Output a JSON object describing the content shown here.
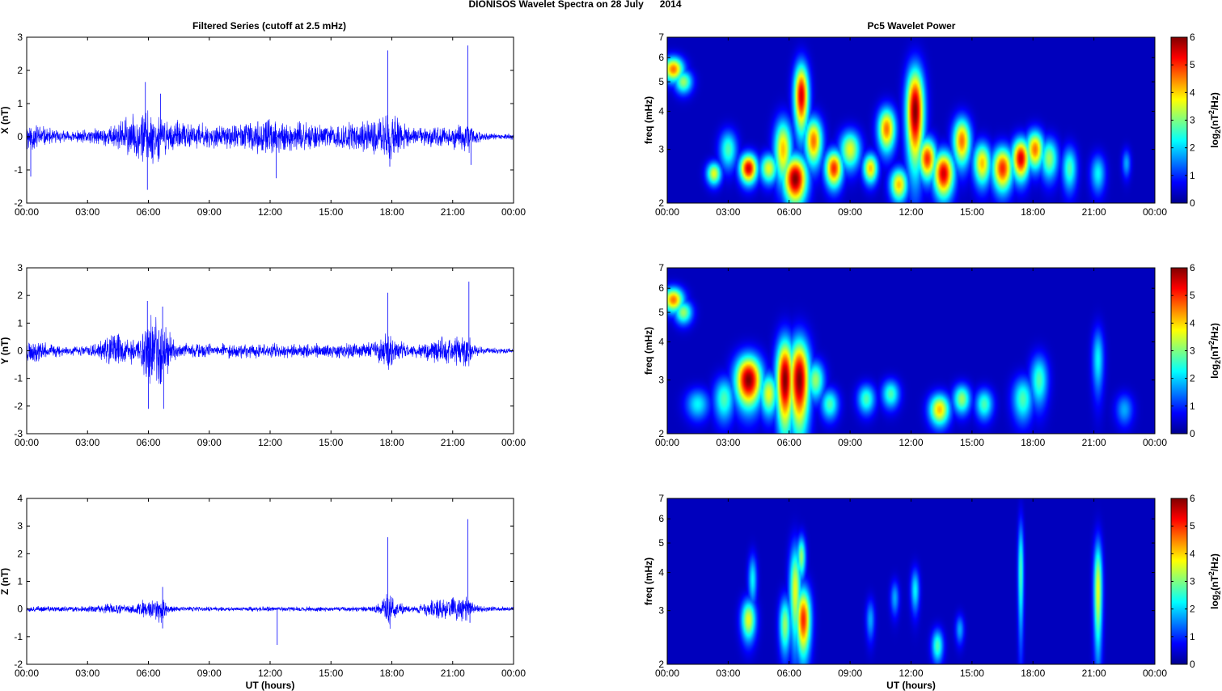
{
  "figure_title": "DIONISOS Wavelet Spectra on 28 July      2014",
  "left_title": "Filtered Series (cutoff at 2.5 mHz)",
  "right_title": "Pc5 Wavelet Power",
  "colors": {
    "trace": "#0000ff",
    "axes": "#000000",
    "background": "#ffffff",
    "grid": "none"
  },
  "chart_data": [
    {
      "type": "line",
      "id": "x",
      "title": "Filtered Series (cutoff at 2.5 mHz)",
      "xlabel": "",
      "ylabel": "X (nT)",
      "x_ticks": [
        "00:00",
        "03:00",
        "06:00",
        "09:00",
        "12:00",
        "15:00",
        "18:00",
        "21:00",
        "00:00"
      ],
      "xlim_hours": [
        0,
        24
      ],
      "y_ticks": [
        -2,
        -1,
        0,
        1,
        2,
        3
      ],
      "ylim": [
        -2,
        3
      ],
      "grid": false,
      "envelope": {
        "x_hours": [
          0,
          0.5,
          1,
          1.5,
          2,
          2.5,
          3,
          3.5,
          4,
          4.5,
          5,
          5.5,
          5.8,
          6,
          6.3,
          6.7,
          7,
          7.5,
          8,
          8.5,
          9,
          9.5,
          10,
          10.5,
          11,
          11.5,
          12,
          12.5,
          13,
          13.5,
          14,
          14.5,
          15,
          15.5,
          16,
          16.5,
          17,
          17.5,
          17.8,
          18,
          18.3,
          18.7,
          19,
          19.5,
          20,
          20.5,
          21,
          21.5,
          21.8,
          22,
          22.5,
          23,
          23.5,
          24
        ],
        "amplitude_nT": [
          0.55,
          0.5,
          0.3,
          0.25,
          0.2,
          0.2,
          0.25,
          0.3,
          0.35,
          0.5,
          0.7,
          0.8,
          1.0,
          0.9,
          0.85,
          0.7,
          0.6,
          0.5,
          0.45,
          0.5,
          0.4,
          0.4,
          0.4,
          0.5,
          0.5,
          0.55,
          0.6,
          0.55,
          0.5,
          0.5,
          0.45,
          0.45,
          0.4,
          0.45,
          0.5,
          0.55,
          0.55,
          0.7,
          0.95,
          0.8,
          0.6,
          0.5,
          0.3,
          0.3,
          0.35,
          0.35,
          0.4,
          0.5,
          0.55,
          0.3,
          0.15,
          0.12,
          0.1,
          0.1
        ]
      },
      "spikes": [
        {
          "x_hours": 0.2,
          "y": -1.2
        },
        {
          "x_hours": 5.85,
          "y": 1.65
        },
        {
          "x_hours": 5.95,
          "y": -1.6
        },
        {
          "x_hours": 6.6,
          "y": 1.3
        },
        {
          "x_hours": 12.3,
          "y": -1.25
        },
        {
          "x_hours": 17.8,
          "y": 2.6
        },
        {
          "x_hours": 17.9,
          "y": -0.9
        },
        {
          "x_hours": 21.75,
          "y": 2.75
        },
        {
          "x_hours": 21.9,
          "y": -0.85
        }
      ]
    },
    {
      "type": "line",
      "id": "y",
      "ylabel": "Y (nT)",
      "x_ticks": [
        "00:00",
        "03:00",
        "06:00",
        "09:00",
        "12:00",
        "15:00",
        "18:00",
        "21:00",
        "00:00"
      ],
      "xlim_hours": [
        0,
        24
      ],
      "y_ticks": [
        -3,
        -2,
        -1,
        0,
        1,
        2,
        3
      ],
      "ylim": [
        -3,
        3
      ],
      "grid": false,
      "envelope": {
        "x_hours": [
          0,
          0.5,
          1,
          1.5,
          2,
          2.5,
          3,
          3.5,
          4,
          4.5,
          5,
          5.5,
          5.8,
          6,
          6.3,
          6.6,
          6.9,
          7.2,
          7.5,
          8,
          9,
          10,
          11,
          11.5,
          12,
          12.5,
          13,
          14,
          15,
          16,
          17,
          17.5,
          17.8,
          18,
          18.3,
          18.7,
          19,
          19.5,
          20,
          20.5,
          21,
          21.5,
          21.8,
          22,
          22.5,
          23,
          23.5,
          24
        ],
        "amplitude_nT": [
          0.5,
          0.45,
          0.3,
          0.25,
          0.2,
          0.2,
          0.25,
          0.3,
          0.6,
          0.75,
          0.5,
          0.7,
          1.3,
          1.6,
          1.3,
          1.5,
          1.1,
          0.5,
          0.35,
          0.3,
          0.3,
          0.3,
          0.3,
          0.3,
          0.35,
          0.3,
          0.3,
          0.3,
          0.3,
          0.3,
          0.35,
          0.5,
          0.9,
          0.7,
          0.45,
          0.35,
          0.3,
          0.35,
          0.55,
          0.55,
          0.6,
          0.65,
          0.7,
          0.25,
          0.15,
          0.12,
          0.12,
          0.12
        ]
      },
      "spikes": [
        {
          "x_hours": 5.95,
          "y": 1.8
        },
        {
          "x_hours": 6.0,
          "y": -2.1
        },
        {
          "x_hours": 6.7,
          "y": 1.6
        },
        {
          "x_hours": 6.75,
          "y": -2.1
        },
        {
          "x_hours": 17.8,
          "y": 2.1
        },
        {
          "x_hours": 21.8,
          "y": 2.5
        }
      ]
    },
    {
      "type": "line",
      "id": "z",
      "xlabel": "UT (hours)",
      "ylabel": "Z (nT)",
      "x_ticks": [
        "00:00",
        "03:00",
        "06:00",
        "09:00",
        "12:00",
        "15:00",
        "18:00",
        "21:00",
        "00:00"
      ],
      "xlim_hours": [
        0,
        24
      ],
      "y_ticks": [
        -2,
        -1,
        0,
        1,
        2,
        3,
        4
      ],
      "ylim": [
        -2,
        4
      ],
      "grid": false,
      "envelope": {
        "x_hours": [
          0,
          1,
          2,
          3,
          3.5,
          4,
          4.5,
          5,
          5.5,
          5.8,
          6,
          6.3,
          6.6,
          6.9,
          7.2,
          7.5,
          8,
          9,
          10,
          11,
          12,
          13,
          14,
          15,
          16,
          17,
          17.5,
          17.8,
          18,
          18.3,
          18.7,
          19,
          19.5,
          20,
          20.5,
          21,
          21.5,
          21.8,
          22,
          22.5,
          23,
          24
        ],
        "amplitude_nT": [
          0.12,
          0.12,
          0.12,
          0.12,
          0.15,
          0.25,
          0.2,
          0.15,
          0.3,
          0.45,
          0.35,
          0.5,
          0.6,
          0.3,
          0.15,
          0.12,
          0.1,
          0.1,
          0.1,
          0.1,
          0.1,
          0.1,
          0.1,
          0.1,
          0.1,
          0.12,
          0.25,
          0.9,
          0.6,
          0.3,
          0.15,
          0.12,
          0.2,
          0.45,
          0.5,
          0.5,
          0.55,
          0.7,
          0.2,
          0.12,
          0.1,
          0.1
        ]
      },
      "spikes": [
        {
          "x_hours": 6.7,
          "y": 0.8
        },
        {
          "x_hours": 6.7,
          "y": -0.7
        },
        {
          "x_hours": 12.35,
          "y": -1.3
        },
        {
          "x_hours": 17.8,
          "y": 2.6
        },
        {
          "x_hours": 17.9,
          "y": -0.55
        },
        {
          "x_hours": 21.75,
          "y": 3.25
        },
        {
          "x_hours": 21.85,
          "y": -0.5
        }
      ]
    },
    {
      "type": "heatmap",
      "id": "wx",
      "title": "Pc5 Wavelet Power",
      "xlabel": "",
      "ylabel": "freq (mHz)",
      "x_ticks": [
        "00:00",
        "03:00",
        "06:00",
        "09:00",
        "12:00",
        "15:00",
        "18:00",
        "21:00",
        "00:00"
      ],
      "xlim_hours": [
        0,
        24
      ],
      "y_scale": "log",
      "y_ticks": [
        2,
        3,
        4,
        5,
        6,
        7
      ],
      "ylim_mHz": [
        2,
        7
      ],
      "colorbar": {
        "label": "log2(nT^2/Hz)",
        "ticks": [
          0,
          1,
          2,
          3,
          4,
          5,
          6
        ],
        "range": [
          0,
          6
        ],
        "colormap": "jet"
      },
      "blobs": [
        {
          "t": 0.3,
          "f": 5.5,
          "sf": 0.35,
          "w": 0.35,
          "p": 4.5
        },
        {
          "t": 0.8,
          "f": 5.0,
          "sf": 0.3,
          "w": 0.3,
          "p": 3.0
        },
        {
          "t": 2.3,
          "f": 2.5,
          "sf": 0.15,
          "w": 0.25,
          "p": 3.5
        },
        {
          "t": 3.0,
          "f": 3.0,
          "sf": 0.3,
          "w": 0.3,
          "p": 2.5
        },
        {
          "t": 4.0,
          "f": 2.6,
          "sf": 0.2,
          "w": 0.3,
          "p": 5.5
        },
        {
          "t": 5.0,
          "f": 2.6,
          "sf": 0.2,
          "w": 0.3,
          "p": 3.5
        },
        {
          "t": 5.7,
          "f": 3.0,
          "sf": 0.5,
          "w": 0.3,
          "p": 4.0
        },
        {
          "t": 6.3,
          "f": 2.4,
          "sf": 0.3,
          "w": 0.4,
          "p": 6.0
        },
        {
          "t": 6.6,
          "f": 4.5,
          "sf": 0.8,
          "w": 0.25,
          "p": 5.5
        },
        {
          "t": 7.2,
          "f": 3.2,
          "sf": 0.4,
          "w": 0.3,
          "p": 4.5
        },
        {
          "t": 8.2,
          "f": 2.6,
          "sf": 0.25,
          "w": 0.3,
          "p": 5.0
        },
        {
          "t": 9.0,
          "f": 3.0,
          "sf": 0.3,
          "w": 0.35,
          "p": 3.5
        },
        {
          "t": 10.0,
          "f": 2.6,
          "sf": 0.2,
          "w": 0.25,
          "p": 4.0
        },
        {
          "t": 10.8,
          "f": 3.5,
          "sf": 0.4,
          "w": 0.3,
          "p": 4.5
        },
        {
          "t": 11.4,
          "f": 2.3,
          "sf": 0.2,
          "w": 0.3,
          "p": 4.0
        },
        {
          "t": 12.2,
          "f": 4.0,
          "sf": 1.0,
          "w": 0.3,
          "p": 6.0
        },
        {
          "t": 12.8,
          "f": 2.8,
          "sf": 0.3,
          "w": 0.3,
          "p": 5.0
        },
        {
          "t": 13.6,
          "f": 2.5,
          "sf": 0.3,
          "w": 0.35,
          "p": 5.5
        },
        {
          "t": 14.5,
          "f": 3.2,
          "sf": 0.4,
          "w": 0.3,
          "p": 4.5
        },
        {
          "t": 15.5,
          "f": 2.7,
          "sf": 0.3,
          "w": 0.3,
          "p": 4.0
        },
        {
          "t": 16.5,
          "f": 2.6,
          "sf": 0.3,
          "w": 0.35,
          "p": 5.0
        },
        {
          "t": 17.4,
          "f": 2.8,
          "sf": 0.3,
          "w": 0.3,
          "p": 5.5
        },
        {
          "t": 18.1,
          "f": 3.0,
          "sf": 0.3,
          "w": 0.3,
          "p": 4.5
        },
        {
          "t": 18.8,
          "f": 2.8,
          "sf": 0.3,
          "w": 0.3,
          "p": 3.0
        },
        {
          "t": 19.8,
          "f": 2.6,
          "sf": 0.3,
          "w": 0.25,
          "p": 2.5
        },
        {
          "t": 21.2,
          "f": 2.5,
          "sf": 0.25,
          "w": 0.25,
          "p": 2.0
        },
        {
          "t": 22.6,
          "f": 2.7,
          "sf": 0.2,
          "w": 0.15,
          "p": 1.5
        }
      ]
    },
    {
      "type": "heatmap",
      "id": "wy",
      "ylabel": "freq (mHz)",
      "x_ticks": [
        "00:00",
        "03:00",
        "06:00",
        "09:00",
        "12:00",
        "15:00",
        "18:00",
        "21:00",
        "00:00"
      ],
      "xlim_hours": [
        0,
        24
      ],
      "y_scale": "log",
      "y_ticks": [
        2,
        3,
        4,
        5,
        6,
        7
      ],
      "ylim_mHz": [
        2,
        7
      ],
      "colorbar": {
        "label": "log2(nT^2/Hz)",
        "ticks": [
          0,
          1,
          2,
          3,
          4,
          5,
          6
        ],
        "range": [
          0,
          6
        ],
        "colormap": "jet"
      },
      "blobs": [
        {
          "t": 0.3,
          "f": 5.5,
          "sf": 0.35,
          "w": 0.35,
          "p": 4.5
        },
        {
          "t": 0.8,
          "f": 5.0,
          "sf": 0.3,
          "w": 0.3,
          "p": 3.0
        },
        {
          "t": 1.5,
          "f": 2.5,
          "sf": 0.2,
          "w": 0.4,
          "p": 2.0
        },
        {
          "t": 2.8,
          "f": 2.6,
          "sf": 0.3,
          "w": 0.35,
          "p": 2.5
        },
        {
          "t": 4.0,
          "f": 3.0,
          "sf": 0.4,
          "w": 0.45,
          "p": 6.0
        },
        {
          "t": 5.0,
          "f": 2.7,
          "sf": 0.3,
          "w": 0.3,
          "p": 3.5
        },
        {
          "t": 5.8,
          "f": 3.0,
          "sf": 0.7,
          "w": 0.3,
          "p": 6.0
        },
        {
          "t": 6.5,
          "f": 3.0,
          "sf": 0.7,
          "w": 0.35,
          "p": 6.0
        },
        {
          "t": 7.3,
          "f": 3.0,
          "sf": 0.3,
          "w": 0.3,
          "p": 3.0
        },
        {
          "t": 8.0,
          "f": 2.5,
          "sf": 0.2,
          "w": 0.3,
          "p": 2.5
        },
        {
          "t": 9.8,
          "f": 2.6,
          "sf": 0.2,
          "w": 0.3,
          "p": 2.5
        },
        {
          "t": 11.0,
          "f": 2.7,
          "sf": 0.2,
          "w": 0.3,
          "p": 2.5
        },
        {
          "t": 13.4,
          "f": 2.4,
          "sf": 0.2,
          "w": 0.35,
          "p": 4.0
        },
        {
          "t": 14.5,
          "f": 2.6,
          "sf": 0.2,
          "w": 0.3,
          "p": 3.0
        },
        {
          "t": 15.6,
          "f": 2.5,
          "sf": 0.2,
          "w": 0.3,
          "p": 2.5
        },
        {
          "t": 17.5,
          "f": 2.6,
          "sf": 0.3,
          "w": 0.35,
          "p": 2.5
        },
        {
          "t": 18.3,
          "f": 3.0,
          "sf": 0.4,
          "w": 0.3,
          "p": 2.5
        },
        {
          "t": 21.2,
          "f": 3.5,
          "sf": 0.6,
          "w": 0.2,
          "p": 2.0
        },
        {
          "t": 22.5,
          "f": 2.4,
          "sf": 0.2,
          "w": 0.3,
          "p": 1.5
        }
      ]
    },
    {
      "type": "heatmap",
      "id": "wz",
      "xlabel": "UT (hours)",
      "ylabel": "freq (mHz)",
      "x_ticks": [
        "00:00",
        "03:00",
        "06:00",
        "09:00",
        "12:00",
        "15:00",
        "18:00",
        "21:00",
        "00:00"
      ],
      "xlim_hours": [
        0,
        24
      ],
      "y_scale": "log",
      "y_ticks": [
        2,
        3,
        4,
        5,
        6,
        7
      ],
      "ylim_mHz": [
        2,
        7
      ],
      "colorbar": {
        "label": "log2(nT^2/Hz)",
        "ticks": [
          0,
          1,
          2,
          3,
          4,
          5,
          6
        ],
        "range": [
          0,
          6
        ],
        "colormap": "jet"
      },
      "blobs": [
        {
          "t": 4.0,
          "f": 2.8,
          "sf": 0.3,
          "w": 0.25,
          "p": 3.5
        },
        {
          "t": 4.2,
          "f": 3.8,
          "sf": 0.5,
          "w": 0.15,
          "p": 2.0
        },
        {
          "t": 5.8,
          "f": 2.7,
          "sf": 0.4,
          "w": 0.2,
          "p": 3.0
        },
        {
          "t": 6.3,
          "f": 3.5,
          "sf": 0.9,
          "w": 0.2,
          "p": 3.5
        },
        {
          "t": 6.7,
          "f": 2.8,
          "sf": 0.5,
          "w": 0.25,
          "p": 5.0
        },
        {
          "t": 6.6,
          "f": 4.5,
          "sf": 0.5,
          "w": 0.15,
          "p": 3.0
        },
        {
          "t": 10.0,
          "f": 2.8,
          "sf": 0.3,
          "w": 0.15,
          "p": 1.5
        },
        {
          "t": 11.2,
          "f": 3.3,
          "sf": 0.3,
          "w": 0.15,
          "p": 1.5
        },
        {
          "t": 12.2,
          "f": 3.5,
          "sf": 0.4,
          "w": 0.15,
          "p": 2.0
        },
        {
          "t": 13.3,
          "f": 2.3,
          "sf": 0.2,
          "w": 0.2,
          "p": 2.5
        },
        {
          "t": 14.4,
          "f": 2.6,
          "sf": 0.2,
          "w": 0.15,
          "p": 1.5
        },
        {
          "t": 17.4,
          "f": 4.0,
          "sf": 1.2,
          "w": 0.1,
          "p": 2.5
        },
        {
          "t": 21.2,
          "f": 3.5,
          "sf": 1.0,
          "w": 0.15,
          "p": 3.5
        }
      ]
    }
  ]
}
